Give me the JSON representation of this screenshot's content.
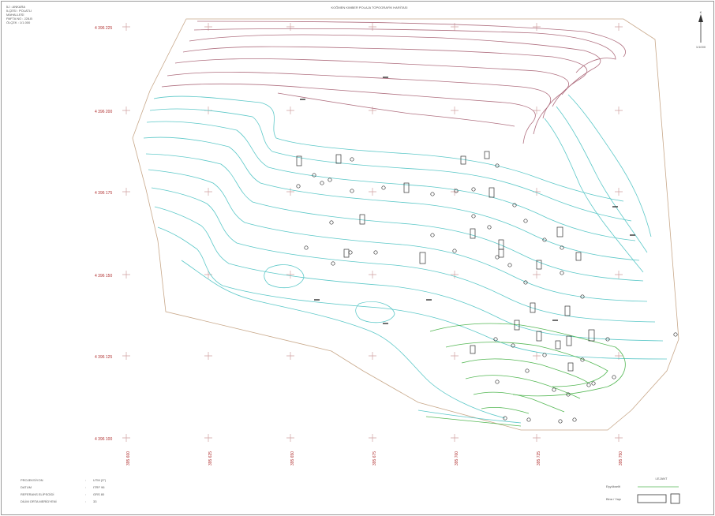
{
  "title": "KOĞMEN KIMBER POLAJA TOPOGRAFİK HARİTASI",
  "header_lines": [
    "İLİ : ANKARA",
    "İLÇESİ : POLATLI",
    "MAHALLESİ",
    "PAFTA NO : J28-B",
    "ÖLÇEK : 1/1.000"
  ],
  "north_label": "K",
  "north_sub": "1/1000",
  "grid_labels": {
    "northings": [
      "4 396 225",
      "4 396 200",
      "4 396 175",
      "4 396 150",
      "4 396 125",
      "4 396 100"
    ],
    "eastings": [
      "395 600",
      "395 625",
      "395 650",
      "395 675",
      "395 700",
      "395 725",
      "395 750"
    ]
  },
  "info_block": {
    "rows": [
      {
        "label": "PROJEKSİYON",
        "value": "UTM (3°)"
      },
      {
        "label": "DATUM",
        "value": "ITRF 96"
      },
      {
        "label": "REFERANS ELİPSOİDİ",
        "value": "GRS 80"
      },
      {
        "label": "DİLİM ORTA MERİDYENİ",
        "value": "33"
      }
    ]
  },
  "legend": {
    "title": "LEJANT",
    "contour_label": "Eşyükselti",
    "structure_label": "Bina / Yapı"
  },
  "colors": {
    "contour_high": "#b07080",
    "contour_mid": "#5cc8c8",
    "contour_low": "#55b855",
    "boundary": "#c8a88a",
    "grid_cross": "#d0a0a0"
  }
}
